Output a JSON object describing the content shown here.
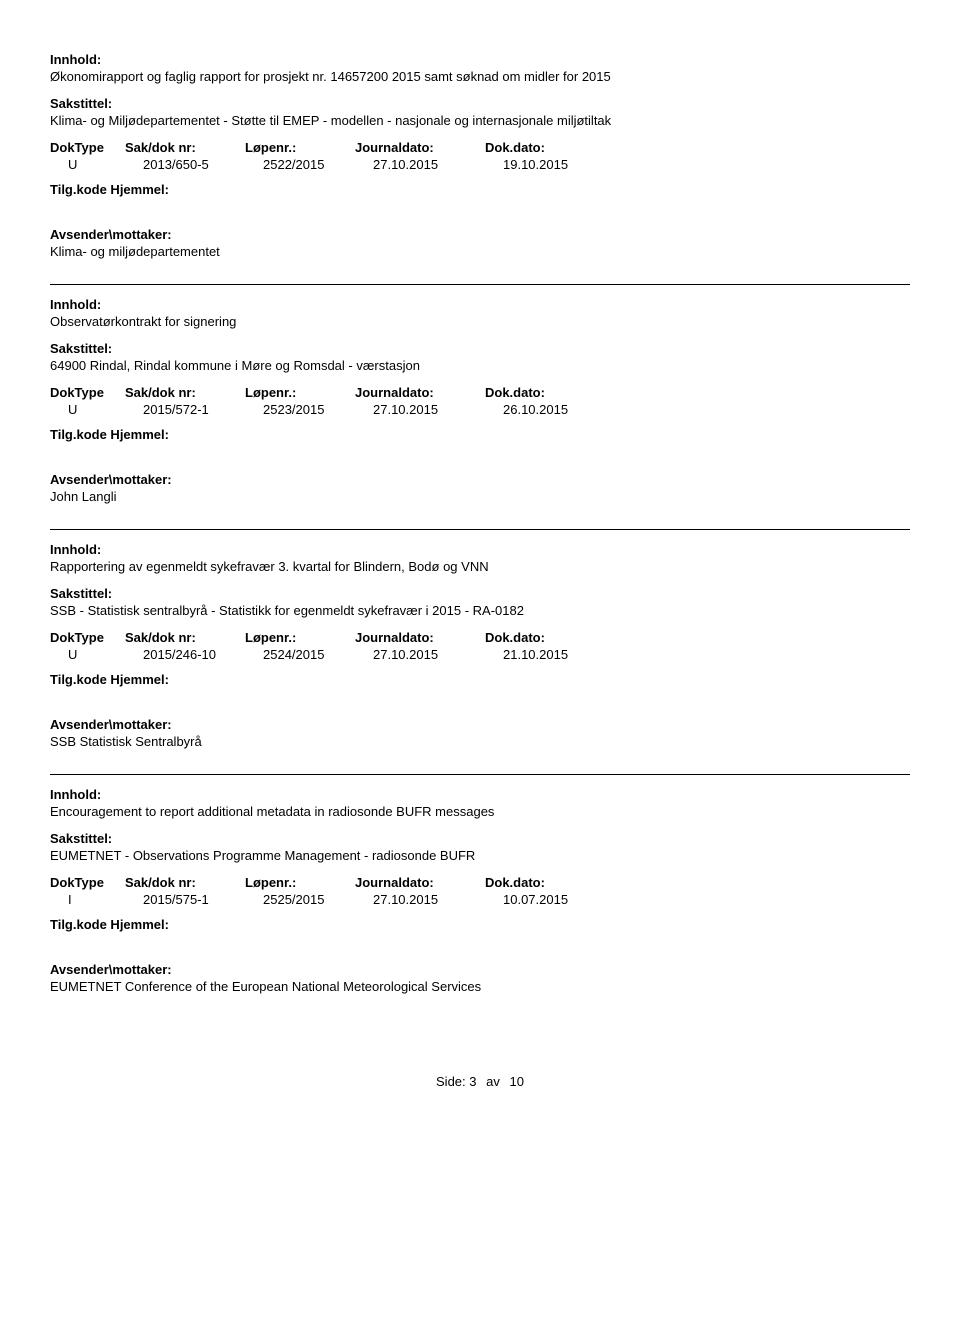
{
  "labels": {
    "innhold": "Innhold:",
    "sakstittel": "Sakstittel:",
    "doktype": "DokType",
    "sak": "Sak/dok nr:",
    "lopenr": "Løpenr.:",
    "journal": "Journaldato:",
    "dokdato": "Dok.dato:",
    "tilg": "Tilg.kode Hjemmel:",
    "avsender": "Avsender\\mottaker:"
  },
  "records": [
    {
      "innhold": "Økonomirapport og faglig rapport for prosjekt nr. 14657200 2015 samt søknad om midler for 2015",
      "sakstittel": "Klima- og Miljødepartementet  - Støtte til EMEP - modellen - nasjonale og internasjonale miljøtiltak",
      "doktype": "U",
      "sak": "2013/650-5",
      "lopenr": "2522/2015",
      "journal": "27.10.2015",
      "dokdato": "19.10.2015",
      "avsender": "Klima- og miljødepartementet"
    },
    {
      "innhold": "Observatørkontrakt for signering",
      "sakstittel": "64900 Rindal, Rindal kommune i Møre og Romsdal - værstasjon",
      "doktype": "U",
      "sak": "2015/572-1",
      "lopenr": "2523/2015",
      "journal": "27.10.2015",
      "dokdato": "26.10.2015",
      "avsender": "John Langli"
    },
    {
      "innhold": "Rapportering av egenmeldt sykefravær 3. kvartal for Blindern, Bodø og VNN",
      "sakstittel": "SSB - Statistisk sentralbyrå - Statistikk for egenmeldt sykefravær i 2015 - RA-0182",
      "doktype": "U",
      "sak": "2015/246-10",
      "lopenr": "2524/2015",
      "journal": "27.10.2015",
      "dokdato": "21.10.2015",
      "avsender": "SSB Statistisk Sentralbyrå"
    },
    {
      "innhold": "Encouragement to report additional metadata in radiosonde BUFR messages",
      "sakstittel": "EUMETNET - Observations Programme Management - radiosonde BUFR",
      "doktype": "I",
      "sak": "2015/575-1",
      "lopenr": "2525/2015",
      "journal": "27.10.2015",
      "dokdato": "10.07.2015",
      "avsender": "EUMETNET Conference of the European National Meteorological Services"
    }
  ],
  "footer": {
    "label": "Side:",
    "page": "3",
    "av": "av",
    "total": "10"
  }
}
